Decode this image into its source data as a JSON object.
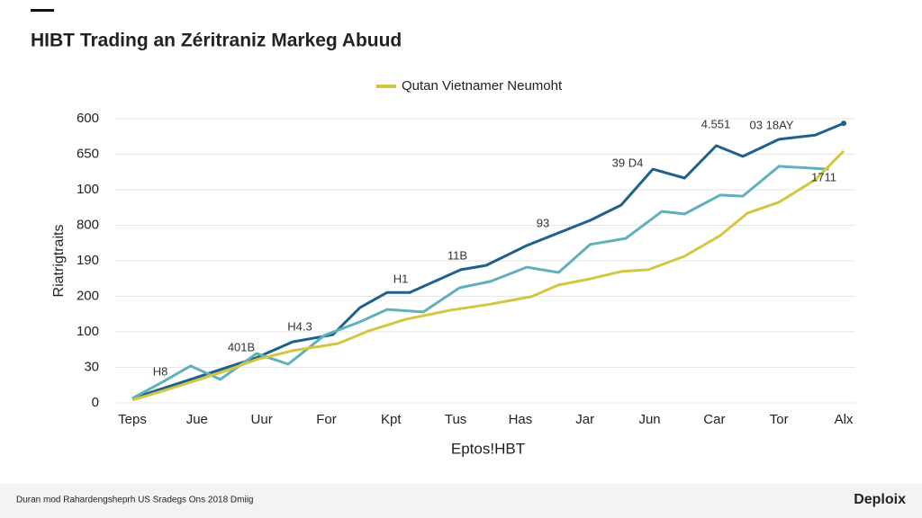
{
  "chart_data": {
    "type": "line",
    "title": "HIBT Trading an Zéritraniz Markeg Abuud",
    "legend_label": "Qutan Vietnamer Neumoht",
    "y_label": "Riatrigtraits",
    "x_label": "Eptos!HBT",
    "footer": "Duran mod Rahardengsheprh US Sradegs Ons 2018 Dmiig",
    "brand": "Deploix",
    "xlim": [
      0,
      11
    ],
    "xticks": [
      {
        "value": 0,
        "label": "Teps"
      },
      {
        "value": 1,
        "label": "Jue"
      },
      {
        "value": 2,
        "label": "Uur"
      },
      {
        "value": 3,
        "label": "For"
      },
      {
        "value": 4,
        "label": "Kpt"
      },
      {
        "value": 5,
        "label": "Tus"
      },
      {
        "value": 6,
        "label": "Has"
      },
      {
        "value": 7,
        "label": "Jar"
      },
      {
        "value": 8,
        "label": "Jun"
      },
      {
        "value": 9,
        "label": "Car"
      },
      {
        "value": 10,
        "label": "Tor"
      },
      {
        "value": 11,
        "label": "Alx"
      }
    ],
    "ylim": [
      0,
      8
    ],
    "yticks": [
      0,
      {
        "value": 1,
        "label": "30"
      },
      {
        "value": 2,
        "label": "100"
      },
      {
        "value": 3,
        "label": "200"
      },
      {
        "value": 4,
        "label": "190"
      },
      {
        "value": 5,
        "label": "800"
      },
      {
        "value": 6,
        "label": "100"
      },
      {
        "value": 7,
        "label": "650"
      },
      {
        "value": 8,
        "label": "600"
      }
    ],
    "grid": true,
    "series": [
      {
        "color": "#1f618d",
        "x": [
          0,
          0.9,
          1.92,
          2.48,
          3.1,
          3.52,
          3.94,
          4.29,
          5.08,
          5.47,
          6.1,
          7.08,
          7.56,
          8.05,
          8.54,
          9.03,
          9.44,
          10.0,
          10.56,
          11
        ],
        "values": [
          0.13,
          0.66,
          1.27,
          1.72,
          1.92,
          2.68,
          3.11,
          3.11,
          3.75,
          3.87,
          4.43,
          5.14,
          5.57,
          6.58,
          6.33,
          7.24,
          6.94,
          7.42,
          7.54,
          7.87
        ]
      },
      {
        "color": "#62b0ba",
        "x": [
          0,
          0.46,
          0.9,
          1.36,
          1.92,
          2.41,
          2.97,
          3.52,
          3.94,
          4.5,
          5.06,
          5.54,
          6.1,
          6.59,
          7.08,
          7.63,
          8.19,
          8.54,
          9.09,
          9.44,
          10,
          10.77
        ],
        "values": [
          0.13,
          0.58,
          1.04,
          0.66,
          1.39,
          1.09,
          1.9,
          2.28,
          2.63,
          2.56,
          3.24,
          3.42,
          3.82,
          3.67,
          4.46,
          4.63,
          5.39,
          5.32,
          5.85,
          5.82,
          6.66,
          6.58
        ]
      },
      {
        "name": "Qutan Vietnamer Neumoht",
        "color": "#d4c640",
        "x": [
          0,
          0.46,
          0.9,
          1.43,
          1.92,
          2.48,
          3.18,
          3.66,
          4.22,
          4.92,
          5.54,
          6.17,
          6.59,
          7.08,
          7.56,
          7.98,
          8.54,
          9.09,
          9.51,
          10,
          10.56,
          11
        ],
        "values": [
          0.08,
          0.33,
          0.58,
          0.89,
          1.22,
          1.47,
          1.67,
          2.03,
          2.35,
          2.61,
          2.78,
          2.99,
          3.32,
          3.49,
          3.7,
          3.75,
          4.13,
          4.71,
          5.34,
          5.65,
          6.28,
          7.09
        ]
      }
    ],
    "annotations": [
      "H8",
      "401B",
      "H4.3",
      "H1",
      "11B",
      "93",
      "39 D4",
      "4.551",
      "03 18AY",
      "1711"
    ]
  }
}
